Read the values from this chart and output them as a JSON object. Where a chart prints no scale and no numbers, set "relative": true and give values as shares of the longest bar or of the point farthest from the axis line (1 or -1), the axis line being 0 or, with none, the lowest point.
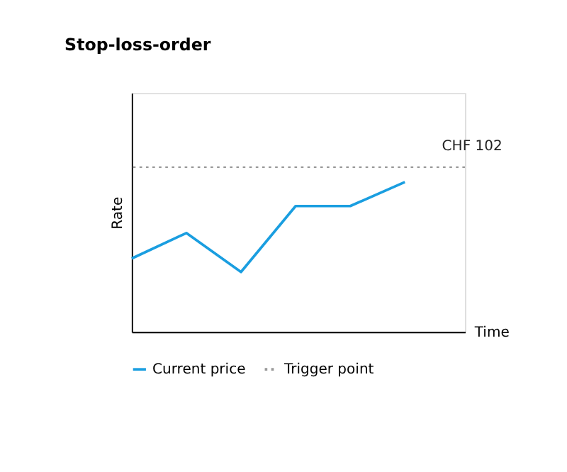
{
  "chart_data": {
    "type": "line",
    "title": "Stop-loss-order",
    "ylabel": "Rate",
    "xlabel": "Time",
    "relative": true,
    "categories": [
      null,
      null,
      null,
      null,
      null,
      null
    ],
    "series": [
      {
        "name": "Current price",
        "color": "#1a9ee0",
        "values": [
          0.49,
          0.66,
          0.4,
          0.84,
          0.84,
          1
        ],
        "line_style": "solid"
      }
    ],
    "ref_lines": [
      {
        "axis": "y",
        "value": 1.1,
        "label": "Trigger point",
        "color": "#999999",
        "line_style": "dotted"
      }
    ],
    "annotations": [
      "CHF 102"
    ],
    "legend": "bottom",
    "grid": false
  }
}
